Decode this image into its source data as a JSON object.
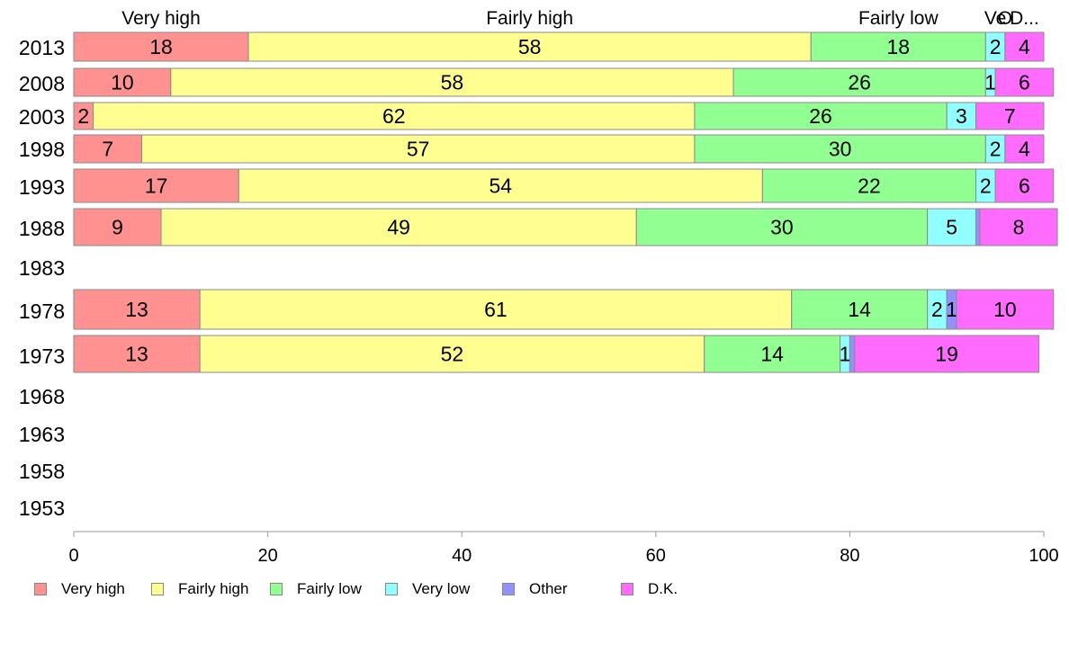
{
  "chart_data": {
    "type": "bar",
    "orientation": "horizontal",
    "stacked": true,
    "categories": [
      "2013",
      "2008",
      "2003",
      "1998",
      "1993",
      "1988",
      "1983",
      "1978",
      "1973",
      "1968",
      "1963",
      "1958",
      "1953"
    ],
    "series": [
      {
        "name": "Very high",
        "color": "#ff9191",
        "values": [
          18,
          10,
          2,
          7,
          17,
          9,
          null,
          13,
          13,
          null,
          null,
          null,
          null
        ]
      },
      {
        "name": "Fairly high",
        "color": "#ffff91",
        "values": [
          58,
          58,
          62,
          57,
          54,
          49,
          null,
          61,
          52,
          null,
          null,
          null,
          null
        ]
      },
      {
        "name": "Fairly low",
        "color": "#91ff91",
        "values": [
          18,
          26,
          26,
          30,
          22,
          30,
          null,
          14,
          14,
          null,
          null,
          null,
          null
        ]
      },
      {
        "name": "Very low",
        "color": "#91ffff",
        "values": [
          2,
          1,
          3,
          2,
          2,
          5,
          null,
          2,
          1,
          null,
          null,
          null,
          null
        ]
      },
      {
        "name": "Other",
        "color": "#9191ff",
        "values": [
          0,
          0,
          0,
          0,
          0,
          0.4,
          null,
          1,
          0.5,
          null,
          null,
          null,
          null
        ]
      },
      {
        "name": "D.K.",
        "color": "#ff6bff",
        "values": [
          4,
          6,
          7,
          4,
          6,
          8,
          null,
          10,
          19,
          null,
          null,
          null,
          null
        ]
      }
    ],
    "data_labels": [
      [
        "18",
        "58",
        "18",
        "2",
        "",
        "4"
      ],
      [
        "10",
        "58",
        "26",
        "1",
        "",
        "6"
      ],
      [
        "2",
        "62",
        "26",
        "3",
        "",
        "7"
      ],
      [
        "7",
        "57",
        "30",
        "2",
        "",
        "4"
      ],
      [
        "17",
        "54",
        "22",
        "2",
        "",
        "6"
      ],
      [
        "9",
        "49",
        "30",
        "5",
        "",
        "8"
      ],
      [
        "",
        "",
        "",
        "",
        "",
        ""
      ],
      [
        "13",
        "61",
        "14",
        "2",
        "1",
        "10"
      ],
      [
        "13",
        "52",
        "14",
        "1",
        "",
        "19"
      ],
      [
        "",
        "",
        "",
        "",
        "",
        ""
      ],
      [
        "",
        "",
        "",
        "",
        "",
        ""
      ],
      [
        "",
        "",
        "",
        "",
        "",
        ""
      ],
      [
        "",
        "",
        "",
        "",
        "",
        ""
      ]
    ],
    "top_labels": [
      "Very high",
      "Fairly high",
      "Fairly low",
      "Very low",
      "Other",
      "D.K."
    ],
    "top_labels_display": [
      "Very high",
      "Fairly high",
      "Fairly low",
      "Ve",
      "O",
      "D..."
    ],
    "xlim": [
      0,
      100
    ],
    "xticks": [
      0,
      20,
      40,
      60,
      80,
      100
    ],
    "legend_position": "bottom"
  }
}
